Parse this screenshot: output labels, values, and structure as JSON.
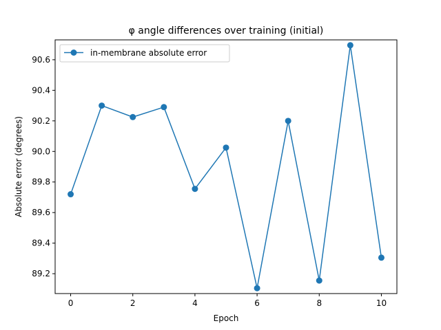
{
  "chart_data": {
    "type": "line",
    "title": "φ angle differences over training (initial)",
    "xlabel": "Epoch",
    "ylabel": "Absolute error (degrees)",
    "x": [
      0,
      1,
      2,
      3,
      4,
      5,
      6,
      7,
      8,
      9,
      10
    ],
    "series": [
      {
        "name": "in-membrane absolute error",
        "color": "#1f77b4",
        "marker": "circle",
        "values": [
          89.72,
          90.3,
          90.225,
          90.29,
          89.755,
          90.025,
          89.105,
          90.2,
          89.155,
          90.695,
          89.305
        ]
      }
    ],
    "xlim": [
      -0.5,
      10.5
    ],
    "ylim": [
      89.07,
      90.73
    ],
    "xticks": [
      0,
      2,
      4,
      6,
      8,
      10
    ],
    "yticks": [
      89.2,
      89.4,
      89.6,
      89.8,
      90.0,
      90.2,
      90.4,
      90.6
    ],
    "ytick_labels": [
      "89.2",
      "89.4",
      "89.6",
      "89.8",
      "90.0",
      "90.2",
      "90.4",
      "90.6"
    ],
    "grid": false,
    "legend": "upper-left"
  }
}
